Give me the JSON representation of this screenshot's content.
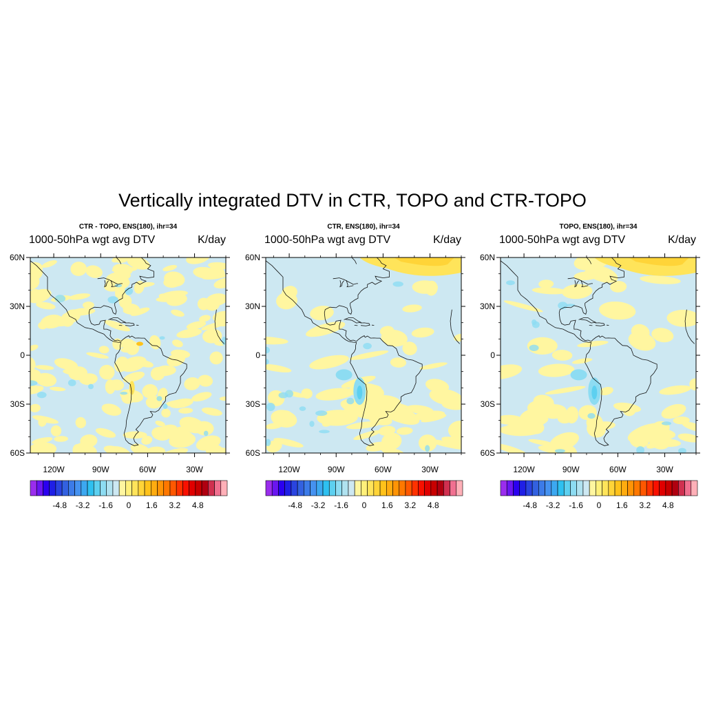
{
  "title": "Vertically integrated DTV in CTR, TOPO and CTR-TOPO",
  "panels": [
    {
      "id": "diff",
      "title": "CTR - TOPO, ENS(180), ihr=34",
      "left_string": "1000-50hPa wgt avg DTV",
      "right_string": "K/day",
      "variant": 0
    },
    {
      "id": "ctr",
      "title": "CTR, ENS(180), ihr=34",
      "left_string": "1000-50hPa wgt avg DTV",
      "right_string": "K/day",
      "variant": 1
    },
    {
      "id": "topo",
      "title": "TOPO, ENS(180), ihr=34",
      "left_string": "1000-50hPa wgt avg DTV",
      "right_string": "K/day",
      "variant": 2
    }
  ],
  "axes": {
    "lat_range": [
      -60,
      60
    ],
    "lon_range": [
      -135,
      -10
    ],
    "lat_ticks": [
      {
        "value": 60,
        "label": "60N"
      },
      {
        "value": 30,
        "label": "30N"
      },
      {
        "value": 0,
        "label": "0"
      },
      {
        "value": -30,
        "label": "30S"
      },
      {
        "value": -60,
        "label": "60S"
      }
    ],
    "lon_ticks": [
      {
        "value": -120,
        "label": "120W"
      },
      {
        "value": -90,
        "label": "90W"
      },
      {
        "value": -60,
        "label": "60W"
      },
      {
        "value": -30,
        "label": "30W"
      }
    ]
  },
  "colorbar": {
    "min": -6.4,
    "max": 6.4,
    "step": 0.4,
    "labels": [
      {
        "value": -4.8,
        "label": "-4.8"
      },
      {
        "value": -3.2,
        "label": "-3.2"
      },
      {
        "value": -1.6,
        "label": "-1.6"
      },
      {
        "value": 0,
        "label": "0"
      },
      {
        "value": 1.6,
        "label": "1.6"
      },
      {
        "value": 3.2,
        "label": "3.2"
      },
      {
        "value": 4.8,
        "label": "4.8"
      }
    ],
    "colors": [
      "#9a2ded",
      "#6a16f0",
      "#2b00f0",
      "#1f1fe6",
      "#2a44e0",
      "#3361e0",
      "#3c7be8",
      "#4592f0",
      "#3ca8f0",
      "#2ec0f0",
      "#5dd0f0",
      "#8ddcf2",
      "#b0e2f0",
      "#cde8f2",
      "#fff6a0",
      "#fff07a",
      "#ffe45a",
      "#ffd438",
      "#ffc21a",
      "#ffac10",
      "#ff9406",
      "#ff7800",
      "#ff5800",
      "#ff3200",
      "#f81000",
      "#e00000",
      "#c80000",
      "#b00010",
      "#d03050",
      "#f07090",
      "#ffb0b8"
    ]
  },
  "palette": {
    "background_field": "#cde8f2",
    "warm_field": "#fff6a0",
    "cool_field": "#b0e2f0",
    "strong_warm": "#ffe45a",
    "strong_cool": "#8ddcf2",
    "coastline": "#111111"
  }
}
